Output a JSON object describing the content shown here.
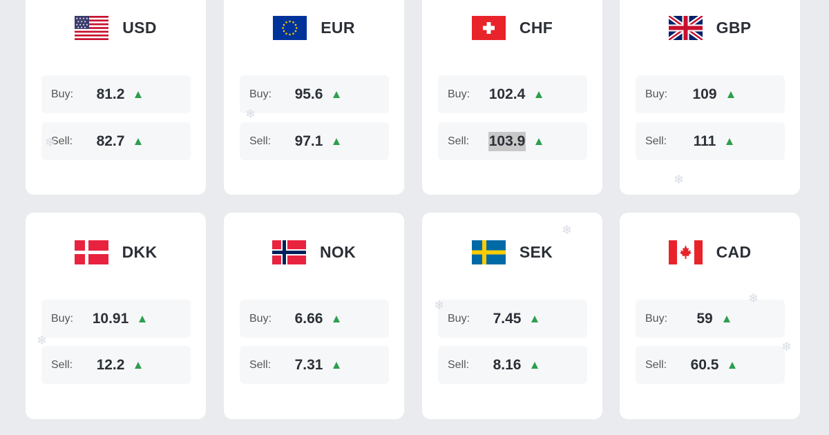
{
  "accent": {
    "up": "#2e9e4f",
    "selection": "#c8c8c8"
  },
  "labels": {
    "buy": "Buy:",
    "sell": "Sell:"
  },
  "currencies": [
    {
      "code": "USD",
      "flag": "us-flag-icon",
      "buy": "81.2",
      "sell": "82.7",
      "buy_trend": "up",
      "sell_trend": "up"
    },
    {
      "code": "EUR",
      "flag": "eu-flag-icon",
      "buy": "95.6",
      "sell": "97.1",
      "buy_trend": "up",
      "sell_trend": "up"
    },
    {
      "code": "CHF",
      "flag": "ch-flag-icon",
      "buy": "102.4",
      "sell": "103.9",
      "buy_trend": "up",
      "sell_trend": "up",
      "sell_selected": true
    },
    {
      "code": "GBP",
      "flag": "gb-flag-icon",
      "buy": "109",
      "sell": "111",
      "buy_trend": "up",
      "sell_trend": "up"
    },
    {
      "code": "DKK",
      "flag": "dk-flag-icon",
      "buy": "10.91",
      "sell": "12.2",
      "buy_trend": "up",
      "sell_trend": "up"
    },
    {
      "code": "NOK",
      "flag": "no-flag-icon",
      "buy": "6.66",
      "sell": "7.31",
      "buy_trend": "up",
      "sell_trend": "up"
    },
    {
      "code": "SEK",
      "flag": "se-flag-icon",
      "buy": "7.45",
      "sell": "8.16",
      "buy_trend": "up",
      "sell_trend": "up"
    },
    {
      "code": "CAD",
      "flag": "ca-flag-icon",
      "buy": "59",
      "sell": "60.5",
      "buy_trend": "up",
      "sell_trend": "up"
    }
  ]
}
